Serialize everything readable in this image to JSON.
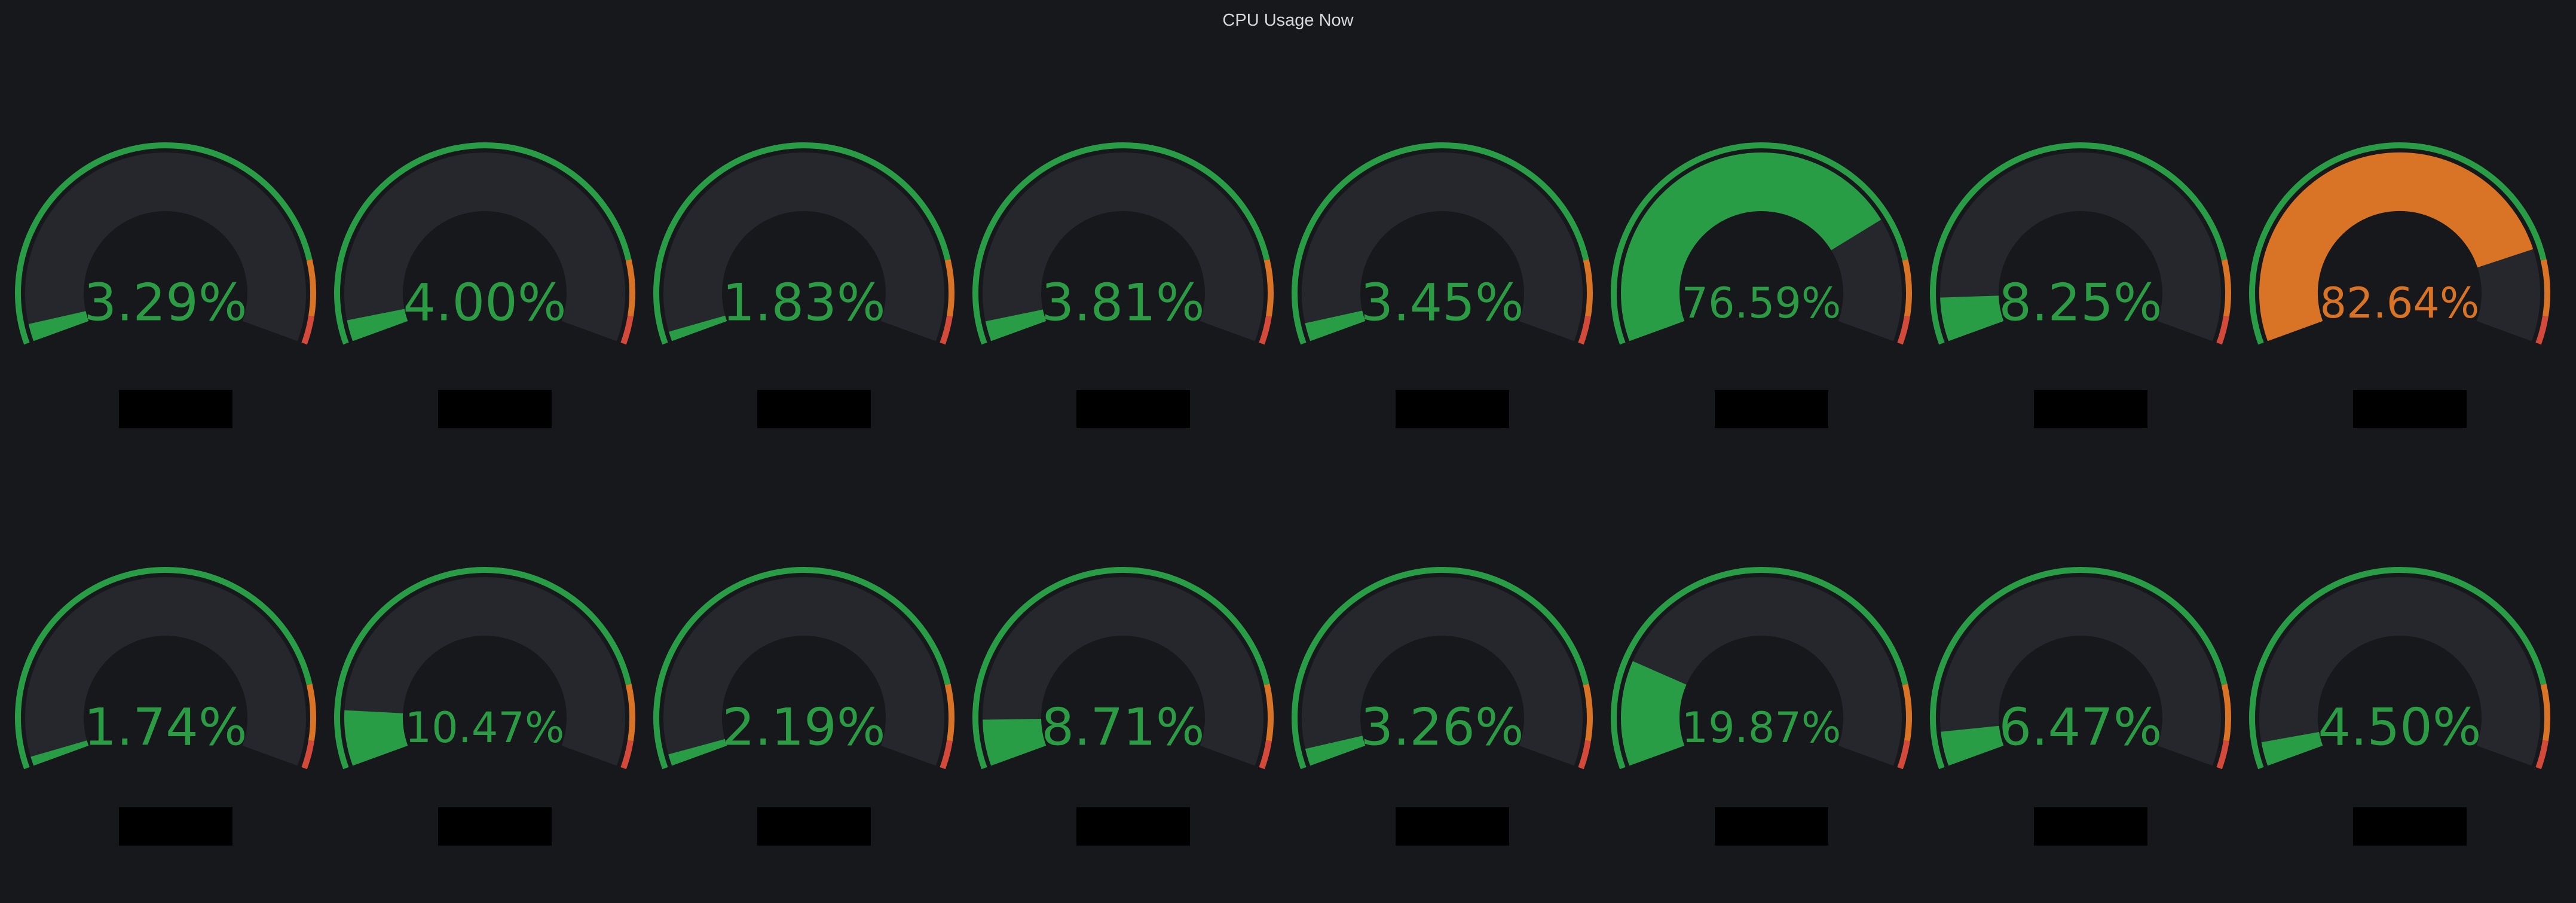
{
  "panel": {
    "title": "CPU Usage Now"
  },
  "thresholds": {
    "base_color": "#299c46",
    "warn_value": 85,
    "warn_color": "#d97325",
    "crit_value": 95,
    "crit_color": "#d44a3a",
    "track_color": "#26272c",
    "text_color": "#2c9c44"
  },
  "gauges": [
    {
      "value": 3.29,
      "text": "3.29%"
    },
    {
      "value": 4.0,
      "text": "4.00%"
    },
    {
      "value": 1.83,
      "text": "1.83%"
    },
    {
      "value": 3.81,
      "text": "3.81%"
    },
    {
      "value": 3.45,
      "text": "3.45%"
    },
    {
      "value": 76.59,
      "text": "76.59%"
    },
    {
      "value": 8.25,
      "text": "8.25%"
    },
    {
      "value": 82.64,
      "text": "82.64%",
      "color": "#d97325"
    },
    {
      "value": 1.74,
      "text": "1.74%"
    },
    {
      "value": 10.47,
      "text": "10.47%"
    },
    {
      "value": 2.19,
      "text": "2.19%"
    },
    {
      "value": 8.71,
      "text": "8.71%"
    },
    {
      "value": 3.26,
      "text": "3.26%"
    },
    {
      "value": 19.87,
      "text": "19.87%"
    },
    {
      "value": 6.47,
      "text": "6.47%"
    },
    {
      "value": 4.5,
      "text": "4.50%"
    }
  ]
}
